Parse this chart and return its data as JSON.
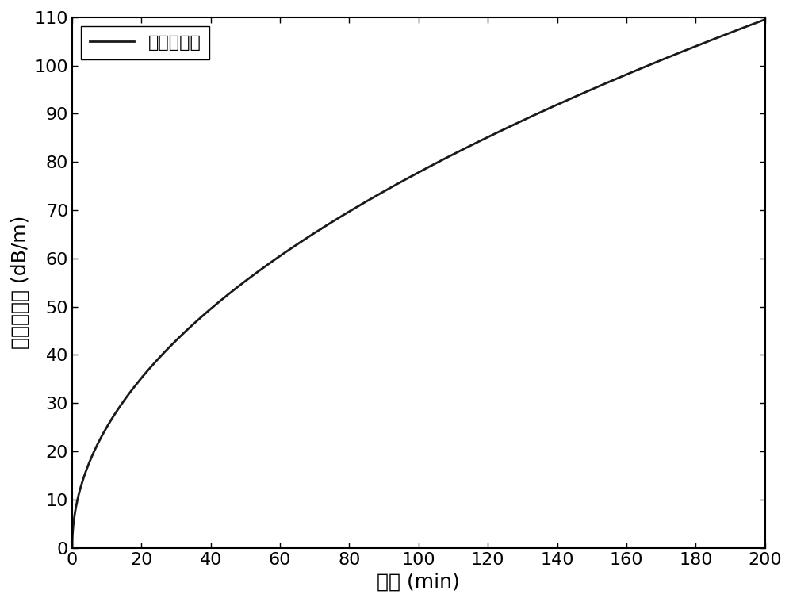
{
  "xlabel": "时间 (min)",
  "ylabel": "光暗化损耗 (dB/m)",
  "legend_label": "光暗化损耗",
  "xlim": [
    0,
    200
  ],
  "ylim": [
    0,
    110
  ],
  "xticks": [
    0,
    20,
    40,
    60,
    80,
    100,
    120,
    140,
    160,
    180,
    200
  ],
  "yticks": [
    0,
    10,
    20,
    30,
    40,
    50,
    60,
    70,
    80,
    90,
    100,
    110
  ],
  "line_color": "#1a1a1a",
  "line_width": 2.0,
  "background_color": "#ffffff",
  "curve_A": 109.0,
  "curve_b": 0.018,
  "curve_c": 0.38,
  "xlabel_fontsize": 18,
  "ylabel_fontsize": 18,
  "tick_fontsize": 16,
  "legend_fontsize": 16
}
